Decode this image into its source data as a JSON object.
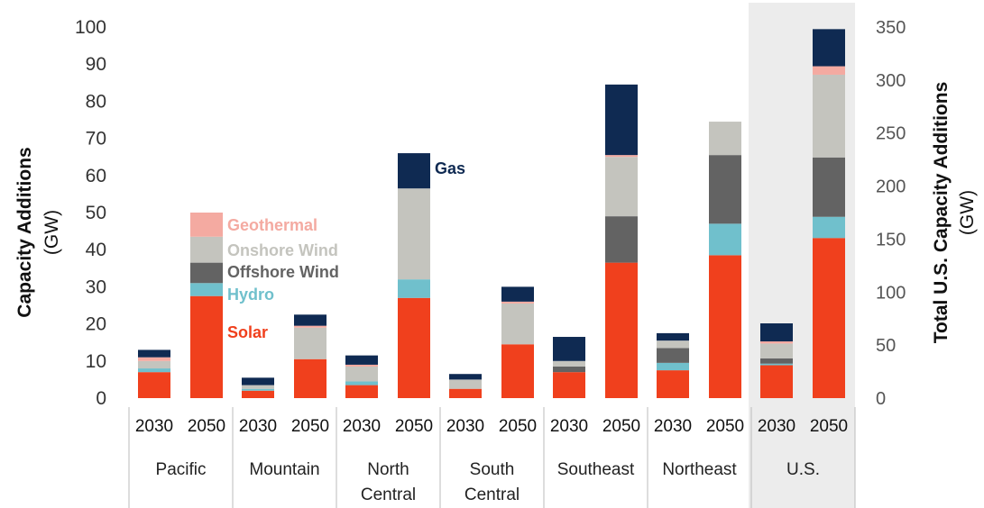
{
  "colors": {
    "Solar": "#f0401d",
    "Hydro": "#70c0cc",
    "Offshore Wind": "#636363",
    "Onshore Wind": "#c4c4be",
    "Geothermal": "#f4aaa1",
    "Gas": "#0f2a52",
    "us_panel": "#ececec",
    "separator": "#bbbbbb"
  },
  "chart_data": {
    "type": "bar",
    "stacked": true,
    "ylabel_left": "Capacity Additions",
    "ylabel_left_unit": "(GW)",
    "ylabel_right": "Total U.S. Capacity Additions",
    "ylabel_right_unit": "(GW)",
    "ylim_left": [
      0,
      100
    ],
    "yticks_left": [
      "0",
      "10",
      "20",
      "30",
      "40",
      "50",
      "60",
      "70",
      "80",
      "90",
      "100"
    ],
    "ylim_right": [
      0,
      350
    ],
    "yticks_right": [
      "0",
      "50",
      "100",
      "150",
      "200",
      "250",
      "300",
      "350"
    ],
    "grid": false,
    "legend": "annotations inside plot (Pacific and North Central)",
    "regions": [
      "Pacific",
      "Mountain",
      "North\nCentral",
      "South\nCentral",
      "Southeast",
      "Northeast",
      "U.S."
    ],
    "years": [
      "2030",
      "2050"
    ],
    "series_order": [
      "Solar",
      "Hydro",
      "Offshore Wind",
      "Onshore Wind",
      "Geothermal",
      "Gas"
    ],
    "bars": [
      {
        "region": "Pacific",
        "year": "2030",
        "values": [
          7,
          1,
          0,
          2,
          1,
          2
        ]
      },
      {
        "region": "Pacific",
        "year": "2050",
        "values": [
          27.5,
          3.5,
          5.5,
          7,
          6.5,
          0
        ]
      },
      {
        "region": "Mountain",
        "year": "2030",
        "values": [
          2,
          0.5,
          0,
          1,
          0,
          2
        ]
      },
      {
        "region": "Mountain",
        "year": "2050",
        "values": [
          10.5,
          0,
          0,
          8.5,
          0.5,
          3
        ]
      },
      {
        "region": "North\nCentral",
        "year": "2030",
        "values": [
          3.5,
          1,
          0,
          4,
          0.5,
          2.5
        ]
      },
      {
        "region": "North\nCentral",
        "year": "2050",
        "values": [
          27,
          5,
          0,
          24.5,
          0,
          9.5
        ]
      },
      {
        "region": "South\nCentral",
        "year": "2030",
        "values": [
          2.5,
          0,
          0,
          2.5,
          0,
          1.5
        ]
      },
      {
        "region": "South\nCentral",
        "year": "2050",
        "values": [
          14.5,
          0,
          0,
          11,
          0.5,
          4
        ]
      },
      {
        "region": "Southeast",
        "year": "2030",
        "values": [
          7,
          0,
          1.5,
          1.5,
          0,
          6.5
        ]
      },
      {
        "region": "Southeast",
        "year": "2050",
        "values": [
          36.5,
          0,
          12.5,
          16,
          0.5,
          19
        ]
      },
      {
        "region": "Northeast",
        "year": "2030",
        "values": [
          7.5,
          2,
          4,
          2,
          0,
          2
        ]
      },
      {
        "region": "Northeast",
        "year": "2050",
        "values": [
          38.5,
          8.5,
          18.5,
          9,
          0,
          0
        ]
      },
      {
        "region": "U.S.",
        "year": "2030",
        "values": [
          31,
          1.5,
          5,
          14,
          2,
          17
        ],
        "axis": "right"
      },
      {
        "region": "U.S.",
        "year": "2050",
        "values": [
          151,
          20,
          56,
          78,
          8,
          35
        ],
        "axis": "right"
      }
    ],
    "annotations": [
      {
        "text": "Gas",
        "series": "Gas",
        "near": "North Central 2050"
      },
      {
        "text": "Geothermal",
        "series": "Geothermal",
        "near": "Pacific 2050"
      },
      {
        "text": "Onshore Wind",
        "series": "Onshore Wind",
        "near": "Pacific 2050"
      },
      {
        "text": "Offshore Wind",
        "series": "Offshore Wind",
        "near": "Pacific 2050"
      },
      {
        "text": "Hydro",
        "series": "Hydro",
        "near": "Pacific 2050"
      },
      {
        "text": "Solar",
        "series": "Solar",
        "near": "Pacific 2050"
      }
    ]
  }
}
